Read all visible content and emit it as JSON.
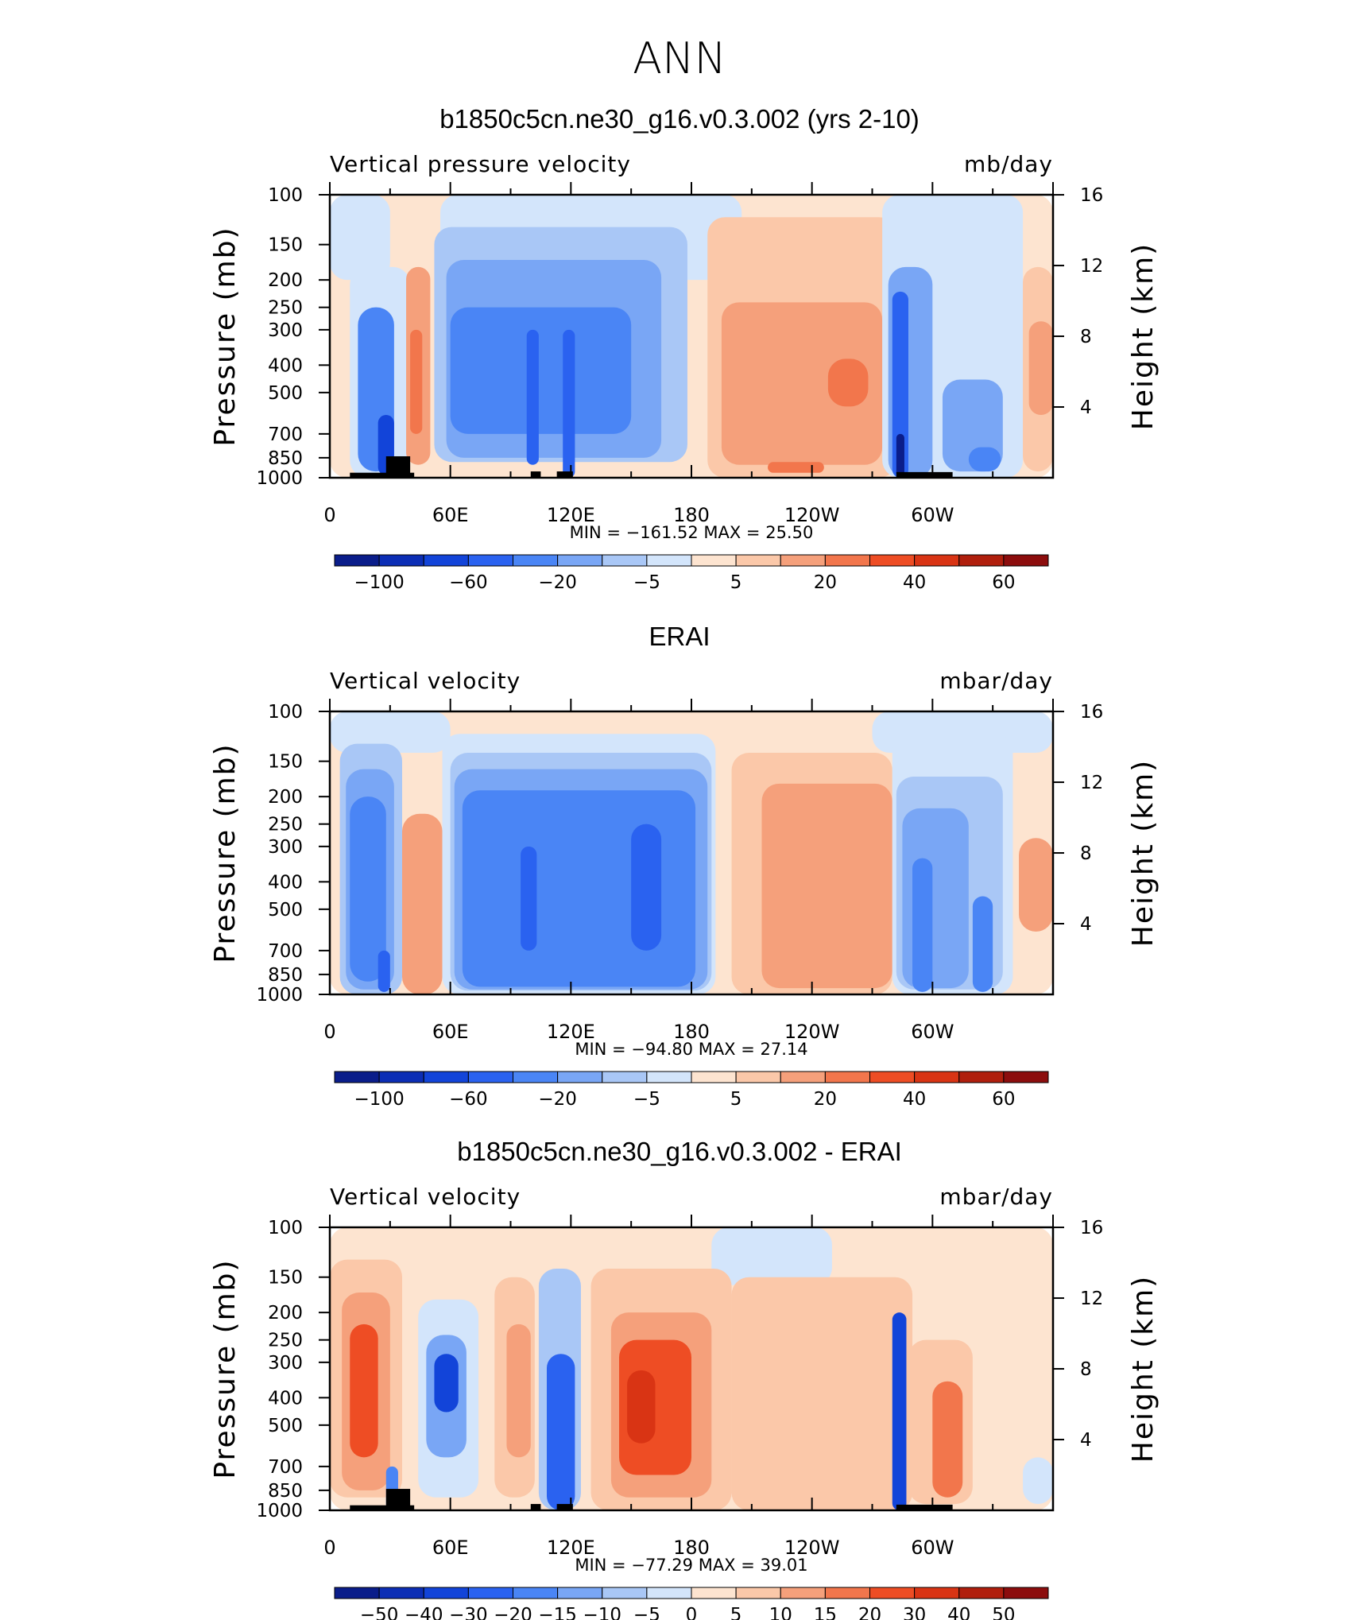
{
  "page_title": "ANN",
  "chart_data": [
    {
      "type": "heatmap",
      "title": "b1850c5cn.ne30_g16.v0.3.002 (yrs 2-10)",
      "left_label": "Vertical pressure velocity",
      "units": "mb/day",
      "ylabel": "Pressure (mb)",
      "y2label": "Height (km)",
      "x_ticklabels": [
        "0",
        "60E",
        "120E",
        "180",
        "120W",
        "60W"
      ],
      "y_ticklabels": [
        "100",
        "150",
        "200",
        "250",
        "300",
        "400",
        "500",
        "700",
        "850",
        "1000"
      ],
      "y2_ticklabels": [
        "16",
        "12",
        "8",
        "4"
      ],
      "xlim": [
        0,
        360
      ],
      "ylim": [
        1000,
        100
      ],
      "yscale": "log",
      "min_max_text": "MIN = −161.52 MAX = 25.50",
      "min": -161.52,
      "max": 25.5,
      "colorbar_ticklabels": [
        "−100",
        "−60",
        "−20",
        "−5",
        "5",
        "20",
        "40",
        "60"
      ],
      "colorbar_colors": [
        "#0a1d8a",
        "#0c2eb5",
        "#1244d9",
        "#2a62f0",
        "#4a85f5",
        "#79a6f5",
        "#a9c7f6",
        "#d3e5fb",
        "#fde4d0",
        "#fbc8a9",
        "#f5a07b",
        "#f2764c",
        "#ee4d24",
        "#d93414",
        "#b01f0d",
        "#8c0d0d"
      ],
      "regions": [
        {
          "lon": [
            0,
            360
          ],
          "p": [
            100,
            1000
          ],
          "v": 2
        },
        {
          "lon": [
            0,
            30
          ],
          "p": [
            100,
            200
          ],
          "v": -2
        },
        {
          "lon": [
            55,
            205
          ],
          "p": [
            100,
            200
          ],
          "v": -3
        },
        {
          "lon": [
            10,
            40
          ],
          "p": [
            180,
            1000
          ],
          "v": -5
        },
        {
          "lon": [
            14,
            32
          ],
          "p": [
            250,
            950
          ],
          "v": -30
        },
        {
          "lon": [
            24,
            32
          ],
          "p": [
            600,
            980
          ],
          "v": -70
        },
        {
          "lon": [
            38,
            50
          ],
          "p": [
            180,
            900
          ],
          "v": 12
        },
        {
          "lon": [
            40,
            46
          ],
          "p": [
            300,
            700
          ],
          "v": 25
        },
        {
          "lon": [
            52,
            178
          ],
          "p": [
            130,
            880
          ],
          "v": -10
        },
        {
          "lon": [
            58,
            165
          ],
          "p": [
            170,
            850
          ],
          "v": -20
        },
        {
          "lon": [
            60,
            150
          ],
          "p": [
            250,
            700
          ],
          "v": -35
        },
        {
          "lon": [
            98,
            104
          ],
          "p": [
            300,
            900
          ],
          "v": -50
        },
        {
          "lon": [
            116,
            122
          ],
          "p": [
            300,
            1000
          ],
          "v": -55
        },
        {
          "lon": [
            188,
            282
          ],
          "p": [
            120,
            1000
          ],
          "v": 8
        },
        {
          "lon": [
            195,
            275
          ],
          "p": [
            240,
            900
          ],
          "v": 15
        },
        {
          "lon": [
            248,
            268
          ],
          "p": [
            380,
            560
          ],
          "v": 28
        },
        {
          "lon": [
            218,
            246
          ],
          "p": [
            880,
            960
          ],
          "v": 25
        },
        {
          "lon": [
            275,
            345
          ],
          "p": [
            100,
            1000
          ],
          "v": -3
        },
        {
          "lon": [
            278,
            300
          ],
          "p": [
            180,
            1000
          ],
          "v": -20
        },
        {
          "lon": [
            280,
            288
          ],
          "p": [
            220,
            1000
          ],
          "v": -60
        },
        {
          "lon": [
            282,
            286
          ],
          "p": [
            700,
            1000
          ],
          "v": -110
        },
        {
          "lon": [
            305,
            335
          ],
          "p": [
            450,
            950
          ],
          "v": -15
        },
        {
          "lon": [
            318,
            334
          ],
          "p": [
            780,
            950
          ],
          "v": -35
        },
        {
          "lon": [
            345,
            360
          ],
          "p": [
            180,
            950
          ],
          "v": 8
        },
        {
          "lon": [
            348,
            360
          ],
          "p": [
            280,
            600
          ],
          "v": 15
        }
      ],
      "topography": [
        {
          "lon": [
            10,
            42
          ],
          "p": [
            960,
            1000
          ]
        },
        {
          "lon": [
            28,
            40
          ],
          "p": [
            840,
            1000
          ]
        },
        {
          "lon": [
            100,
            105
          ],
          "p": [
            950,
            1000
          ]
        },
        {
          "lon": [
            113,
            121
          ],
          "p": [
            950,
            1000
          ]
        },
        {
          "lon": [
            282,
            310
          ],
          "p": [
            955,
            1000
          ]
        }
      ]
    },
    {
      "type": "heatmap",
      "title": "ERAI",
      "left_label": "Vertical velocity",
      "units": "mbar/day",
      "ylabel": "Pressure (mb)",
      "y2label": "Height (km)",
      "x_ticklabels": [
        "0",
        "60E",
        "120E",
        "180",
        "120W",
        "60W"
      ],
      "y_ticklabels": [
        "100",
        "150",
        "200",
        "250",
        "300",
        "400",
        "500",
        "700",
        "850",
        "1000"
      ],
      "y2_ticklabels": [
        "16",
        "12",
        "8",
        "4"
      ],
      "xlim": [
        0,
        360
      ],
      "ylim": [
        1000,
        100
      ],
      "yscale": "log",
      "min_max_text": "MIN = −94.80 MAX = 27.14",
      "min": -94.8,
      "max": 27.14,
      "colorbar_ticklabels": [
        "−100",
        "−60",
        "−20",
        "−5",
        "5",
        "20",
        "40",
        "60"
      ],
      "colorbar_colors": [
        "#0a1d8a",
        "#0c2eb5",
        "#1244d9",
        "#2a62f0",
        "#4a85f5",
        "#79a6f5",
        "#a9c7f6",
        "#d3e5fb",
        "#fde4d0",
        "#fbc8a9",
        "#f5a07b",
        "#f2764c",
        "#ee4d24",
        "#d93414",
        "#b01f0d",
        "#8c0d0d"
      ],
      "regions": [
        {
          "lon": [
            0,
            360
          ],
          "p": [
            100,
            1000
          ],
          "v": 2
        },
        {
          "lon": [
            0,
            60
          ],
          "p": [
            100,
            140
          ],
          "v": -2
        },
        {
          "lon": [
            270,
            360
          ],
          "p": [
            100,
            140
          ],
          "v": -2
        },
        {
          "lon": [
            5,
            36
          ],
          "p": [
            130,
            1000
          ],
          "v": -8
        },
        {
          "lon": [
            8,
            32
          ],
          "p": [
            160,
            960
          ],
          "v": -20
        },
        {
          "lon": [
            10,
            28
          ],
          "p": [
            200,
            900
          ],
          "v": -35
        },
        {
          "lon": [
            24,
            30
          ],
          "p": [
            700,
            980
          ],
          "v": -50
        },
        {
          "lon": [
            36,
            56
          ],
          "p": [
            230,
            1000
          ],
          "v": 12
        },
        {
          "lon": [
            56,
            192
          ],
          "p": [
            120,
            1000
          ],
          "v": -3
        },
        {
          "lon": [
            60,
            190
          ],
          "p": [
            140,
            970
          ],
          "v": -10
        },
        {
          "lon": [
            62,
            188
          ],
          "p": [
            160,
            960
          ],
          "v": -20
        },
        {
          "lon": [
            66,
            182
          ],
          "p": [
            190,
            940
          ],
          "v": -35
        },
        {
          "lon": [
            95,
            103
          ],
          "p": [
            300,
            700
          ],
          "v": -60
        },
        {
          "lon": [
            150,
            165
          ],
          "p": [
            250,
            700
          ],
          "v": -50
        },
        {
          "lon": [
            200,
            280
          ],
          "p": [
            140,
            1000
          ],
          "v": 8
        },
        {
          "lon": [
            215,
            280
          ],
          "p": [
            180,
            950
          ],
          "v": 15
        },
        {
          "lon": [
            280,
            340
          ],
          "p": [
            120,
            1000
          ],
          "v": -3
        },
        {
          "lon": [
            282,
            335
          ],
          "p": [
            170,
            960
          ],
          "v": -10
        },
        {
          "lon": [
            285,
            318
          ],
          "p": [
            220,
            950
          ],
          "v": -20
        },
        {
          "lon": [
            290,
            300
          ],
          "p": [
            330,
            980
          ],
          "v": -35
        },
        {
          "lon": [
            320,
            330
          ],
          "p": [
            450,
            980
          ],
          "v": -40
        },
        {
          "lon": [
            343,
            360
          ],
          "p": [
            280,
            600
          ],
          "v": 10
        }
      ],
      "topography": []
    },
    {
      "type": "heatmap",
      "title": "b1850c5cn.ne30_g16.v0.3.002 - ERAI",
      "left_label": "Vertical velocity",
      "units": "mbar/day",
      "ylabel": "Pressure (mb)",
      "y2label": "Height (km)",
      "x_ticklabels": [
        "0",
        "60E",
        "120E",
        "180",
        "120W",
        "60W"
      ],
      "y_ticklabels": [
        "100",
        "150",
        "200",
        "250",
        "300",
        "400",
        "500",
        "700",
        "850",
        "1000"
      ],
      "y2_ticklabels": [
        "16",
        "12",
        "8",
        "4"
      ],
      "xlim": [
        0,
        360
      ],
      "ylim": [
        1000,
        100
      ],
      "yscale": "log",
      "min_max_text": "MIN = −77.29 MAX = 39.01",
      "min": -77.29,
      "max": 39.01,
      "colorbar_ticklabels": [
        "−50",
        "−40",
        "−30",
        "−20",
        "−15",
        "−10",
        "−5",
        "0",
        "5",
        "10",
        "15",
        "20",
        "30",
        "40",
        "50"
      ],
      "colorbar_colors": [
        "#0a1d8a",
        "#0c2eb5",
        "#1244d9",
        "#2a62f0",
        "#4a85f5",
        "#79a6f5",
        "#a9c7f6",
        "#d3e5fb",
        "#fde4d0",
        "#fbc8a9",
        "#f5a07b",
        "#f2764c",
        "#ee4d24",
        "#d93414",
        "#b01f0d",
        "#8c0d0d"
      ],
      "regions": [
        {
          "lon": [
            0,
            360
          ],
          "p": [
            100,
            1000
          ],
          "v": 2
        },
        {
          "lon": [
            190,
            250
          ],
          "p": [
            100,
            160
          ],
          "v": -2
        },
        {
          "lon": [
            0,
            36
          ],
          "p": [
            130,
            900
          ],
          "v": 7
        },
        {
          "lon": [
            6,
            30
          ],
          "p": [
            170,
            850
          ],
          "v": 12
        },
        {
          "lon": [
            10,
            24
          ],
          "p": [
            220,
            650
          ],
          "v": 20
        },
        {
          "lon": [
            28,
            34
          ],
          "p": [
            700,
            1000
          ],
          "v": -20
        },
        {
          "lon": [
            44,
            74
          ],
          "p": [
            180,
            900
          ],
          "v": -3
        },
        {
          "lon": [
            48,
            68
          ],
          "p": [
            240,
            650
          ],
          "v": -15
        },
        {
          "lon": [
            52,
            64
          ],
          "p": [
            280,
            450
          ],
          "v": -35
        },
        {
          "lon": [
            82,
            102
          ],
          "p": [
            150,
            900
          ],
          "v": 7
        },
        {
          "lon": [
            88,
            100
          ],
          "p": [
            220,
            650
          ],
          "v": 12
        },
        {
          "lon": [
            104,
            125
          ],
          "p": [
            140,
            1000
          ],
          "v": -7
        },
        {
          "lon": [
            108,
            122
          ],
          "p": [
            280,
            1000
          ],
          "v": -25
        },
        {
          "lon": [
            130,
            200
          ],
          "p": [
            140,
            1000
          ],
          "v": 7
        },
        {
          "lon": [
            140,
            190
          ],
          "p": [
            200,
            900
          ],
          "v": 12
        },
        {
          "lon": [
            144,
            180
          ],
          "p": [
            250,
            750
          ],
          "v": 20
        },
        {
          "lon": [
            148,
            162
          ],
          "p": [
            320,
            580
          ],
          "v": 30
        },
        {
          "lon": [
            200,
            290
          ],
          "p": [
            150,
            1000
          ],
          "v": 5
        },
        {
          "lon": [
            280,
            287
          ],
          "p": [
            200,
            1000
          ],
          "v": -40
        },
        {
          "lon": [
            288,
            320
          ],
          "p": [
            250,
            950
          ],
          "v": 8
        },
        {
          "lon": [
            300,
            315
          ],
          "p": [
            350,
            900
          ],
          "v": 15
        },
        {
          "lon": [
            345,
            360
          ],
          "p": [
            650,
            950
          ],
          "v": -5
        }
      ],
      "topography": [
        {
          "lon": [
            10,
            42
          ],
          "p": [
            960,
            1000
          ]
        },
        {
          "lon": [
            28,
            40
          ],
          "p": [
            840,
            1000
          ]
        },
        {
          "lon": [
            100,
            105
          ],
          "p": [
            950,
            1000
          ]
        },
        {
          "lon": [
            113,
            121
          ],
          "p": [
            950,
            1000
          ]
        },
        {
          "lon": [
            282,
            310
          ],
          "p": [
            955,
            1000
          ]
        }
      ]
    }
  ]
}
